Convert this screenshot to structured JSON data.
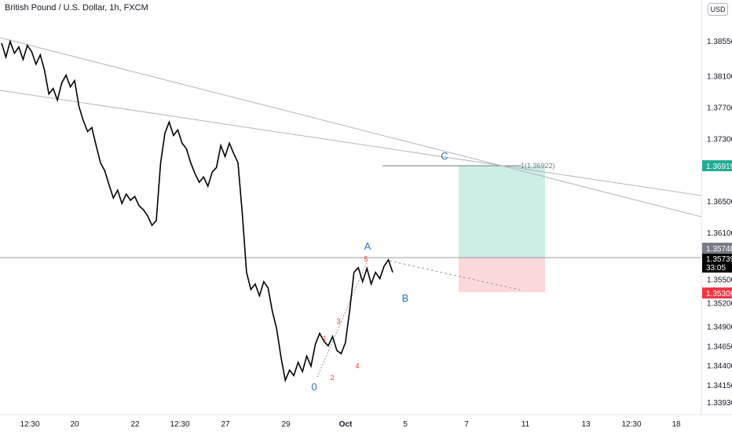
{
  "header": {
    "title": "British Pound / U.S. Dollar, 1h, FXCM",
    "currency": "USD"
  },
  "chart_data": {
    "type": "line",
    "title": "British Pound / U.S. Dollar, 1h, FXCM",
    "ylim": [
      1.338,
      1.39
    ],
    "y_ticks": [
      "1.38550",
      "1.38100",
      "1.37700",
      "1.37300",
      "1.36500",
      "1.36100",
      "1.35500",
      "1.35200",
      "1.34900",
      "1.34650",
      "1.34400",
      "1.34150",
      "1.33930"
    ],
    "x_ticks": [
      "12:30",
      "20",
      "22",
      "12:30",
      "27",
      "29",
      "Oct",
      "5",
      "7",
      "11",
      "13",
      "12:30",
      "18"
    ],
    "series": [
      {
        "values": [
          1.3853,
          1.3835,
          1.3855,
          1.384,
          1.3848,
          1.3832,
          1.385,
          1.3842,
          1.3826,
          1.3838,
          1.3818,
          1.3788,
          1.3795,
          1.378,
          1.3802,
          1.3812,
          1.3797,
          1.3805,
          1.3772,
          1.3754,
          1.374,
          1.3745,
          1.3722,
          1.37,
          1.369,
          1.3672,
          1.3655,
          1.3665,
          1.3648,
          1.366,
          1.3652,
          1.3657,
          1.3645,
          1.364,
          1.3632,
          1.362,
          1.3626,
          1.37,
          1.3738,
          1.3752,
          1.3735,
          1.3742,
          1.3725,
          1.3718,
          1.37,
          1.3686,
          1.3675,
          1.3682,
          1.367,
          1.3688,
          1.3694,
          1.3722,
          1.3708,
          1.3725,
          1.3712,
          1.37,
          1.3635,
          1.356,
          1.3538,
          1.3545,
          1.353,
          1.3548,
          1.354,
          1.351,
          1.3488,
          1.3452,
          1.3422,
          1.3435,
          1.3428,
          1.3445,
          1.3433,
          1.3453,
          1.344,
          1.3468,
          1.3482,
          1.3472,
          1.3466,
          1.3478,
          1.346,
          1.3456,
          1.347,
          1.3512,
          1.356,
          1.3566,
          1.3548,
          1.3565,
          1.3545,
          1.356,
          1.3552,
          1.3568,
          1.3576,
          1.356
        ]
      }
    ],
    "annotations": {
      "waves": [
        "0",
        "1",
        "2",
        "3",
        "4",
        "5"
      ],
      "abc": [
        "A",
        "B",
        "C"
      ],
      "fib_label": "1(1.36922)"
    },
    "levels": {
      "target": 1.36919,
      "entry": 1.35748,
      "stop": 1.35306,
      "current": 1.35739
    }
  },
  "price_tags": {
    "target": "1.36919",
    "entry": "1.35748",
    "current": "1.35739",
    "timer": "33:05",
    "stop": "1.35306"
  },
  "colors": {
    "profit_zone": "#cdeee7",
    "loss_zone": "#fcd9d9",
    "target_tag": "#22ab94",
    "stop_tag": "#f23645",
    "entry_tag": "#787b86",
    "current_tag": "#000000"
  }
}
